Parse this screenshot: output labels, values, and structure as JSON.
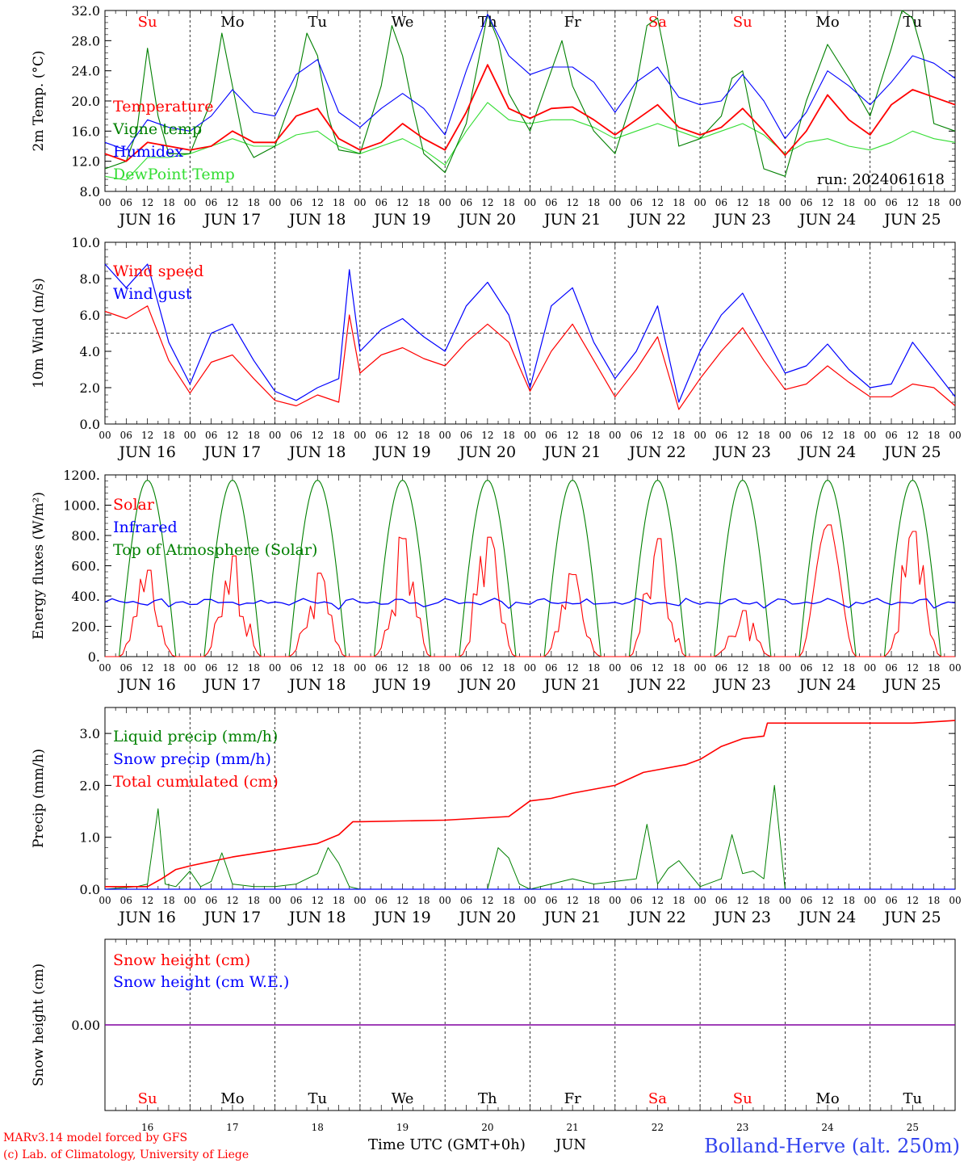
{
  "colors": {
    "red": "#ff0000",
    "green": "#008000",
    "lightgreen": "#33dd33",
    "blue": "#0000ff",
    "purple": "#8000a0",
    "black": "#000000",
    "station_blue": "#3344ee"
  },
  "days": [
    {
      "abbr": "Su",
      "date": "JUN 16",
      "num": "16",
      "weekend": true
    },
    {
      "abbr": "Mo",
      "date": "JUN 17",
      "num": "17",
      "weekend": false
    },
    {
      "abbr": "Tu",
      "date": "JUN 18",
      "num": "18",
      "weekend": false
    },
    {
      "abbr": "We",
      "date": "JUN 19",
      "num": "19",
      "weekend": false
    },
    {
      "abbr": "Th",
      "date": "JUN 20",
      "num": "20",
      "weekend": false
    },
    {
      "abbr": "Fr",
      "date": "JUN 21",
      "num": "21",
      "weekend": false
    },
    {
      "abbr": "Sa",
      "date": "JUN 22",
      "num": "22",
      "weekend": true
    },
    {
      "abbr": "Su",
      "date": "JUN 23",
      "num": "23",
      "weekend": true
    },
    {
      "abbr": "Mo",
      "date": "JUN 24",
      "num": "24",
      "weekend": false
    },
    {
      "abbr": "Tu",
      "date": "JUN 25",
      "num": "25",
      "weekend": false
    }
  ],
  "hour_ticks": [
    "00",
    "06",
    "12",
    "18"
  ],
  "run_label": "run: 2024061618",
  "footer": {
    "credit1": "MARv3.14 model forced by GFS",
    "credit2": "(c) Lab. of Climatology, University of Liege",
    "xlabel": "Time UTC (GMT+0h)",
    "month": "JUN",
    "station": "Bolland-Herve (alt. 250m)"
  },
  "chart_data": [
    {
      "type": "line",
      "id": "temp",
      "ylabel": "2m Temp. (°C)",
      "ylim": [
        8,
        32
      ],
      "yticks": [
        "8.0",
        "12.0",
        "16.0",
        "20.0",
        "24.0",
        "28.0",
        "32.0"
      ],
      "x_unit": "hours since JUN 16 00 UTC",
      "series": [
        {
          "name": "Temperature",
          "color": "#ff0000",
          "x": [
            0,
            6,
            12,
            18,
            24,
            30,
            36,
            42,
            48,
            54,
            60,
            66,
            72,
            78,
            84,
            90,
            96,
            102,
            108,
            114,
            120,
            126,
            132,
            138,
            144,
            150,
            156,
            162,
            168,
            174,
            180,
            186,
            192,
            198,
            204,
            210,
            216,
            222,
            228,
            234,
            240
          ],
          "y": [
            13,
            12,
            14.5,
            14,
            13.5,
            14,
            16,
            14.5,
            14.5,
            18,
            19,
            15,
            13.5,
            14.5,
            17,
            15,
            13.5,
            18.5,
            24.8,
            19,
            17.7,
            19,
            19.2,
            17.5,
            15.5,
            17.5,
            19.5,
            16.5,
            15.5,
            16.5,
            19,
            16,
            12.8,
            16,
            20.8,
            17.5,
            15.5,
            19.5,
            21.5,
            20.5,
            19.5
          ]
        },
        {
          "name": "Vigne temp",
          "color": "#008000",
          "x": [
            0,
            6,
            9,
            12,
            15,
            18,
            24,
            30,
            33,
            36,
            39,
            42,
            48,
            54,
            57,
            60,
            63,
            66,
            72,
            78,
            81,
            84,
            87,
            90,
            96,
            102,
            108,
            111,
            114,
            120,
            126,
            129,
            132,
            138,
            144,
            150,
            153,
            156,
            159,
            162,
            168,
            174,
            177,
            180,
            183,
            186,
            192,
            198,
            204,
            210,
            216,
            222,
            225,
            228,
            231,
            234,
            240
          ],
          "y": [
            11,
            12,
            16,
            27,
            18,
            13,
            13,
            20,
            29,
            22,
            15,
            12.5,
            14,
            22,
            29,
            26,
            18,
            13.5,
            13,
            22,
            30,
            26,
            19,
            13,
            10.5,
            17,
            31.5,
            28,
            21,
            16,
            24,
            28,
            22,
            16,
            13,
            22,
            30,
            31,
            24,
            14,
            15,
            18,
            23,
            24,
            17,
            11,
            10,
            20,
            27.5,
            23,
            18,
            27,
            32,
            31,
            26,
            17,
            16
          ]
        },
        {
          "name": "Humidex",
          "color": "#0000ff",
          "x": [
            0,
            6,
            12,
            18,
            24,
            30,
            36,
            42,
            48,
            54,
            60,
            66,
            72,
            78,
            84,
            90,
            96,
            102,
            108,
            114,
            120,
            126,
            132,
            138,
            144,
            150,
            156,
            162,
            168,
            174,
            180,
            186,
            192,
            198,
            204,
            210,
            216,
            222,
            228,
            234,
            240
          ],
          "y": [
            14.5,
            13.5,
            17.5,
            16.5,
            16,
            18,
            21.5,
            18.5,
            18,
            23.5,
            25.5,
            18.5,
            16.5,
            19,
            21,
            19,
            15.5,
            24,
            31.5,
            26,
            23.5,
            24.5,
            24.5,
            22.5,
            18.5,
            22.5,
            24.5,
            20.5,
            19.5,
            20,
            23.5,
            20,
            15,
            18.5,
            24,
            22,
            19.5,
            22.5,
            26,
            25,
            23
          ]
        },
        {
          "name": "DewPoint Temp",
          "color": "#33dd33",
          "x": [
            0,
            6,
            12,
            18,
            24,
            30,
            36,
            42,
            48,
            54,
            60,
            66,
            72,
            78,
            84,
            90,
            96,
            102,
            108,
            114,
            120,
            126,
            132,
            138,
            144,
            150,
            156,
            162,
            168,
            174,
            180,
            186,
            192,
            198,
            204,
            210,
            216,
            222,
            228,
            234,
            240
          ],
          "y": [
            10,
            9.5,
            12.5,
            12.5,
            13,
            14,
            15,
            14,
            14,
            15.5,
            16,
            14,
            13,
            14,
            15,
            13.5,
            11.5,
            16,
            19.8,
            17.5,
            17,
            17.5,
            17.5,
            16.5,
            15,
            16,
            17,
            16,
            15,
            16,
            17,
            15.5,
            13,
            14.5,
            15,
            14,
            13.5,
            14.5,
            16,
            15,
            14.5
          ]
        }
      ]
    },
    {
      "type": "line",
      "id": "wind",
      "ylabel": "10m Wind (m/s)",
      "ylim": [
        0,
        10
      ],
      "yticks": [
        "0.0",
        "2.0",
        "4.0",
        "6.0",
        "8.0",
        "10.0"
      ],
      "reference_line": 5,
      "x_unit": "hours since JUN 16 00 UTC",
      "series": [
        {
          "name": "Wind speed",
          "color": "#ff0000",
          "x": [
            0,
            6,
            12,
            18,
            24,
            30,
            36,
            42,
            48,
            54,
            60,
            66,
            69,
            72,
            78,
            84,
            90,
            96,
            102,
            108,
            114,
            120,
            126,
            132,
            138,
            144,
            150,
            156,
            162,
            168,
            174,
            180,
            186,
            192,
            198,
            204,
            210,
            216,
            222,
            228,
            234,
            240
          ],
          "y": [
            6.2,
            5.8,
            6.5,
            3.5,
            1.7,
            3.4,
            3.8,
            2.5,
            1.3,
            1.0,
            1.6,
            1.2,
            6.0,
            2.8,
            3.8,
            4.2,
            3.6,
            3.2,
            4.5,
            5.5,
            4.5,
            1.8,
            4.0,
            5.5,
            3.5,
            1.5,
            3.0,
            4.8,
            0.8,
            2.5,
            4.0,
            5.3,
            3.5,
            1.9,
            2.2,
            3.2,
            2.3,
            1.5,
            1.5,
            2.2,
            2.0,
            1.0
          ]
        },
        {
          "name": "Wind gust",
          "color": "#0000ff",
          "x": [
            0,
            6,
            12,
            18,
            24,
            30,
            36,
            42,
            48,
            54,
            60,
            66,
            69,
            72,
            78,
            84,
            90,
            96,
            102,
            108,
            114,
            120,
            126,
            132,
            138,
            144,
            150,
            156,
            162,
            168,
            174,
            180,
            186,
            192,
            198,
            204,
            210,
            216,
            222,
            228,
            234,
            240
          ],
          "y": [
            8.8,
            7.5,
            8.8,
            4.5,
            2.2,
            5.0,
            5.5,
            3.5,
            1.8,
            1.3,
            2.0,
            2.5,
            8.5,
            4.0,
            5.2,
            5.8,
            4.8,
            4.0,
            6.5,
            7.8,
            6.0,
            2.0,
            6.5,
            7.5,
            4.5,
            2.5,
            4.0,
            6.5,
            1.2,
            4.0,
            6.0,
            7.2,
            5.0,
            2.8,
            3.2,
            4.4,
            3.0,
            2.0,
            2.2,
            4.5,
            3.0,
            1.5
          ]
        }
      ]
    },
    {
      "type": "line",
      "id": "energy",
      "ylabel": "Energy fluxes (W/m²)",
      "ylim": [
        0,
        1200
      ],
      "yticks": [
        "0.",
        "200.",
        "400.",
        "600.",
        "800.",
        "1000.",
        "1200."
      ],
      "x_unit": "hours since JUN 16 00 UTC",
      "series": [
        {
          "name": "Solar",
          "color": "#ff0000",
          "daily_peaks": [
            600,
            700,
            580,
            820,
            830,
            570,
            820,
            320,
            870,
            870
          ]
        },
        {
          "name": "Infrared",
          "color": "#0000ff",
          "mean": 360
        },
        {
          "name": "Top of Atmosphere (Solar)",
          "color": "#008000",
          "daily_peak": 1165,
          "sunrise_hour": 4,
          "sunset_hour": 20
        }
      ]
    },
    {
      "type": "line",
      "id": "precip",
      "ylabel": "Precip (mm/h)",
      "ylim": [
        0,
        3.5
      ],
      "yticks": [
        "0.0",
        "1.0",
        "2.0",
        "3.0"
      ],
      "x_unit": "hours since JUN 16 00 UTC",
      "series": [
        {
          "name": "Liquid precip (mm/h)",
          "color": "#008000",
          "x": [
            0,
            9,
            12,
            15,
            17,
            20,
            24,
            27,
            30,
            33,
            36,
            42,
            48,
            54,
            60,
            63,
            66,
            69,
            72,
            108,
            111,
            114,
            117,
            120,
            132,
            138,
            144,
            150,
            153,
            156,
            159,
            162,
            168,
            174,
            177,
            180,
            183,
            186,
            189,
            192,
            240
          ],
          "y": [
            0.0,
            0.05,
            0.1,
            1.55,
            0.1,
            0.05,
            0.35,
            0.05,
            0.15,
            0.7,
            0.1,
            0.05,
            0.05,
            0.1,
            0.3,
            0.8,
            0.5,
            0.05,
            0.0,
            0.0,
            0.8,
            0.6,
            0.1,
            0.0,
            0.2,
            0.1,
            0.15,
            0.2,
            1.25,
            0.1,
            0.4,
            0.55,
            0.05,
            0.2,
            1.05,
            0.3,
            0.35,
            0.2,
            2.0,
            0.0,
            0.0
          ]
        },
        {
          "name": "Snow precip (mm/h)",
          "color": "#0000ff",
          "x": [
            0,
            240
          ],
          "y": [
            0.0,
            0.0
          ]
        },
        {
          "name": "Total cumulated (cm)",
          "color": "#ff0000",
          "x": [
            0,
            12,
            16,
            20,
            24,
            36,
            48,
            60,
            66,
            70,
            72,
            96,
            114,
            120,
            126,
            132,
            144,
            152,
            156,
            164,
            168,
            174,
            180,
            186,
            187,
            192,
            228,
            240
          ],
          "y": [
            0.05,
            0.05,
            0.2,
            0.38,
            0.45,
            0.62,
            0.75,
            0.88,
            1.05,
            1.3,
            1.3,
            1.33,
            1.4,
            1.7,
            1.75,
            1.85,
            2.0,
            2.25,
            2.3,
            2.4,
            2.5,
            2.75,
            2.9,
            2.95,
            3.2,
            3.2,
            3.2,
            3.25
          ]
        }
      ]
    },
    {
      "type": "line",
      "id": "snow",
      "ylabel": "Snow height (cm)",
      "yticks": [
        "0.00"
      ],
      "x_unit": "hours since JUN 16 00 UTC",
      "series": [
        {
          "name": "Snow height (cm)",
          "color": "#ff0000",
          "x": [
            0,
            240
          ],
          "y": [
            0.0,
            0.0
          ]
        },
        {
          "name": "Snow height (cm W.E.)",
          "color": "#0000ff",
          "x": [
            0,
            240
          ],
          "y": [
            0.0,
            0.0
          ]
        }
      ]
    }
  ]
}
